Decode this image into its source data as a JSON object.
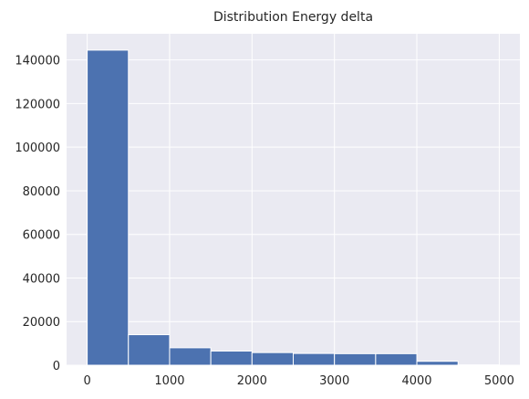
{
  "chart_data": {
    "type": "bar",
    "title": "Distribution Energy delta",
    "xlabel": "",
    "ylabel": "",
    "bins": [
      {
        "start": 0,
        "end": 500,
        "count": 144500
      },
      {
        "start": 500,
        "end": 1000,
        "count": 14000
      },
      {
        "start": 1000,
        "end": 1500,
        "count": 8000
      },
      {
        "start": 1500,
        "end": 2000,
        "count": 6500
      },
      {
        "start": 2000,
        "end": 2500,
        "count": 5800
      },
      {
        "start": 2500,
        "end": 3000,
        "count": 5400
      },
      {
        "start": 3000,
        "end": 3500,
        "count": 5300
      },
      {
        "start": 3500,
        "end": 4000,
        "count": 5300
      },
      {
        "start": 4000,
        "end": 4500,
        "count": 1800
      },
      {
        "start": 4500,
        "end": 5000,
        "count": 150
      }
    ],
    "xlim": [
      -250,
      5250
    ],
    "ylim": [
      0,
      152000
    ],
    "xticks": [
      0,
      1000,
      2000,
      3000,
      4000,
      5000
    ],
    "yticks": [
      0,
      20000,
      40000,
      60000,
      80000,
      100000,
      120000,
      140000
    ],
    "grid": true,
    "bar_color": "#4c72b0",
    "background_color": "#eaeaf2",
    "grid_color": "#ffffff"
  }
}
